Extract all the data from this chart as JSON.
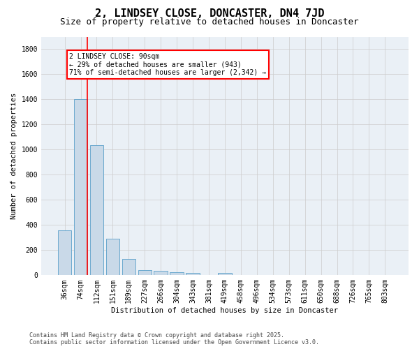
{
  "title": "2, LINDSEY CLOSE, DONCASTER, DN4 7JD",
  "subtitle": "Size of property relative to detached houses in Doncaster",
  "xlabel": "Distribution of detached houses by size in Doncaster",
  "ylabel": "Number of detached properties",
  "categories": [
    "36sqm",
    "74sqm",
    "112sqm",
    "151sqm",
    "189sqm",
    "227sqm",
    "266sqm",
    "304sqm",
    "343sqm",
    "381sqm",
    "419sqm",
    "458sqm",
    "496sqm",
    "534sqm",
    "573sqm",
    "611sqm",
    "650sqm",
    "688sqm",
    "726sqm",
    "765sqm",
    "803sqm"
  ],
  "values": [
    360,
    1400,
    1035,
    290,
    130,
    40,
    35,
    25,
    20,
    0,
    20,
    0,
    0,
    0,
    0,
    0,
    0,
    0,
    0,
    0,
    0
  ],
  "bar_color": "#c9d9e8",
  "bar_edge_color": "#5a9fc9",
  "grid_color": "#cccccc",
  "bg_color": "#eaf0f6",
  "vline_color": "red",
  "vline_x": 1.43,
  "annotation_text_line1": "2 LINDSEY CLOSE: 90sqm",
  "annotation_text_line2": "← 29% of detached houses are smaller (943)",
  "annotation_text_line3": "71% of semi-detached houses are larger (2,342) →",
  "ylim": [
    0,
    1900
  ],
  "yticks": [
    0,
    200,
    400,
    600,
    800,
    1000,
    1200,
    1400,
    1600,
    1800
  ],
  "footer": "Contains HM Land Registry data © Crown copyright and database right 2025.\nContains public sector information licensed under the Open Government Licence v3.0.",
  "title_fontsize": 11,
  "subtitle_fontsize": 9,
  "axis_label_fontsize": 7.5,
  "tick_fontsize": 7,
  "annotation_fontsize": 7,
  "footer_fontsize": 6
}
